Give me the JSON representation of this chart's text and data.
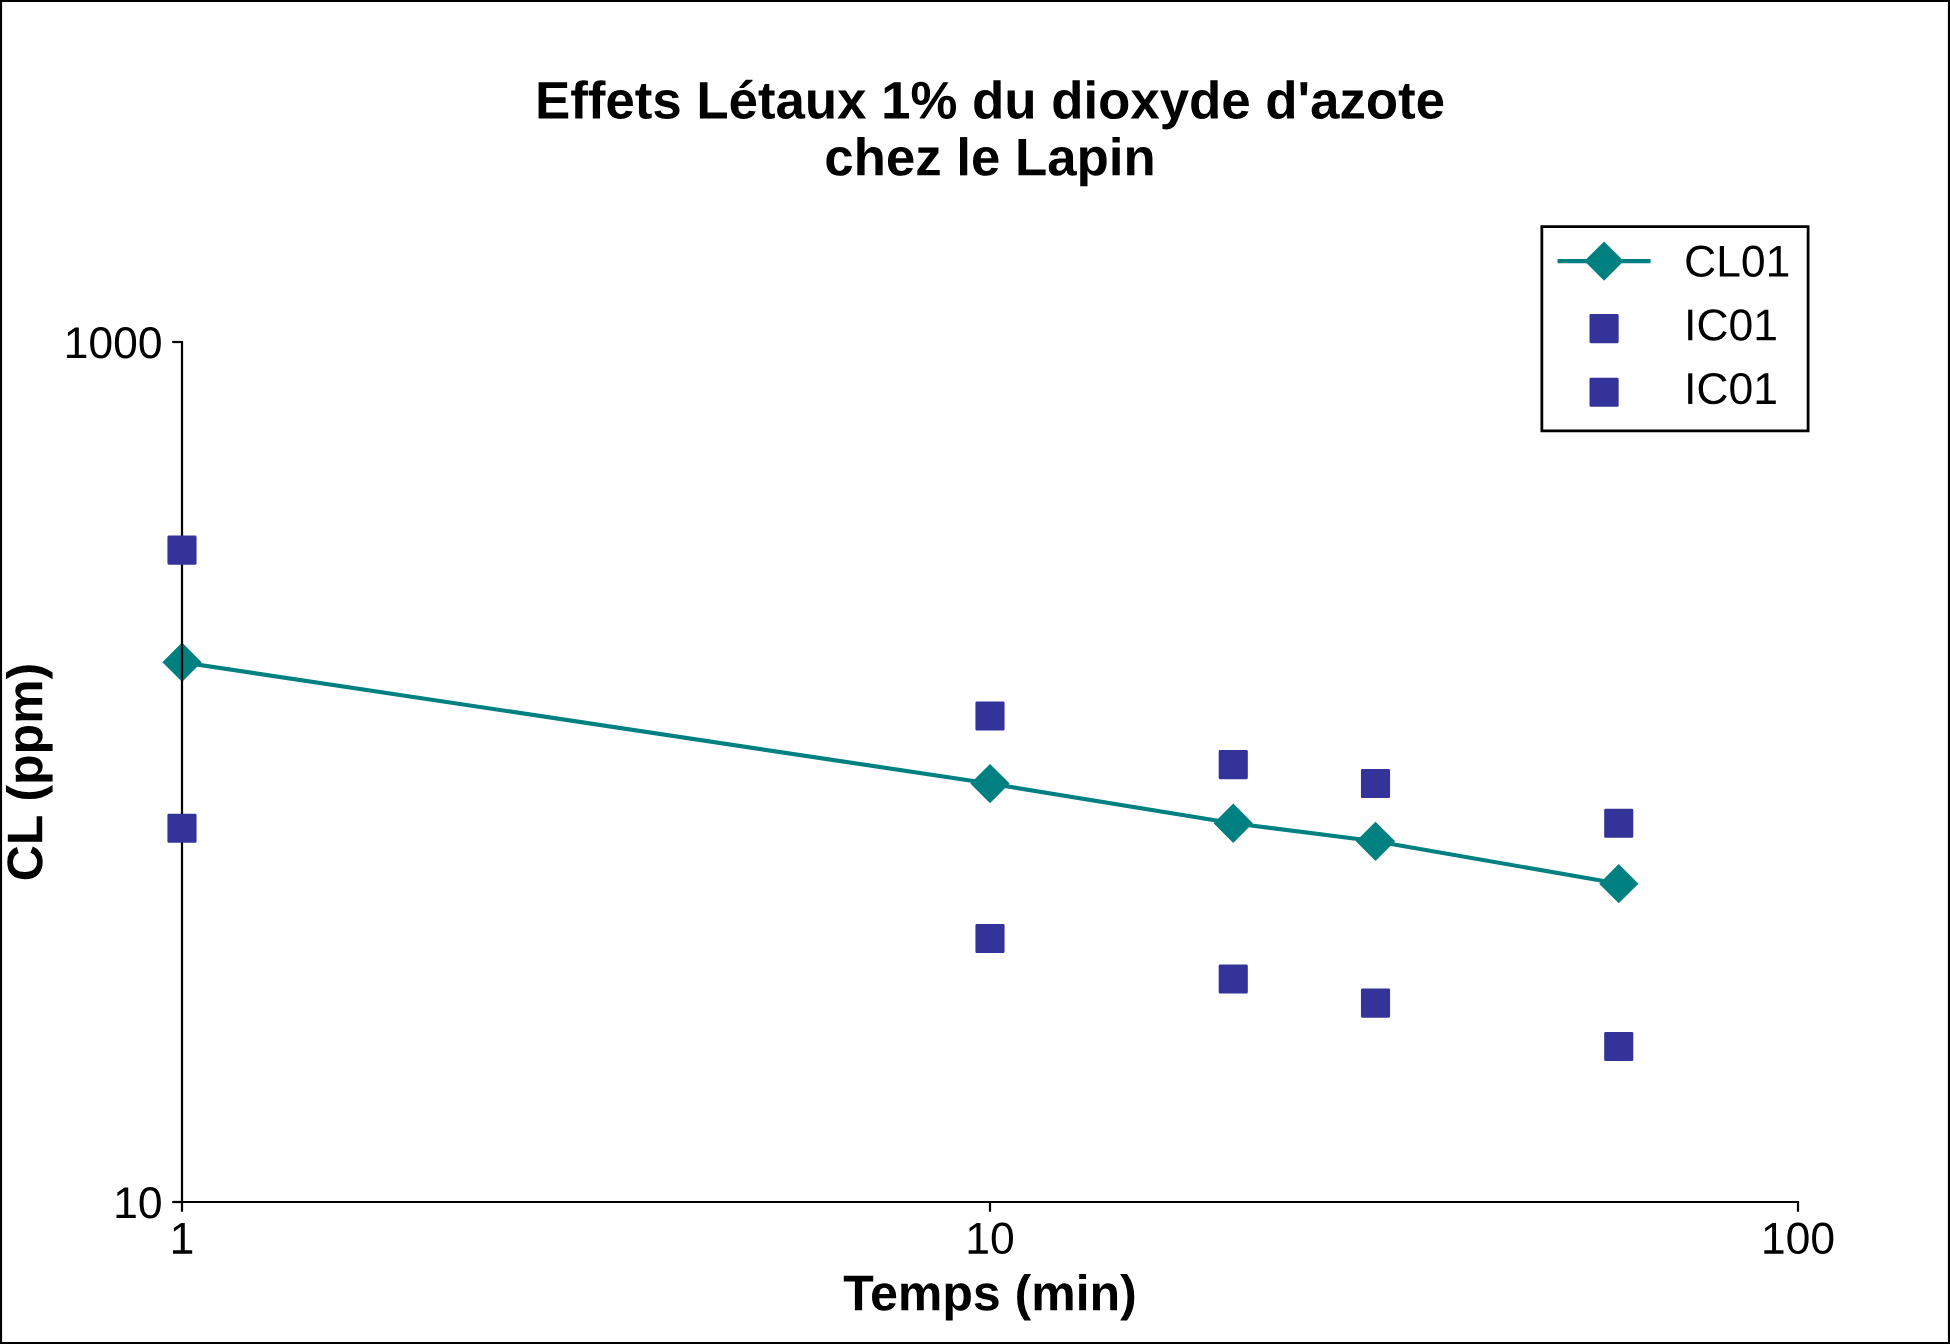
{
  "chart_data": {
    "type": "line",
    "title": "Effets Létaux 1% du dioxyde d'azote\nchez le Lapin",
    "xlabel": "Temps (min)",
    "ylabel": "CL (ppm)",
    "log": "xy",
    "xlim": [
      1,
      100
    ],
    "xticks": [
      1,
      10,
      100
    ],
    "ylim": [
      10,
      1000
    ],
    "yticks": [
      10,
      1000
    ],
    "grid": false,
    "legend": "top right",
    "series": [
      {
        "name": "CL01",
        "color": "#008080",
        "marker": "diamond",
        "line_style": "solid",
        "x": [
          1,
          10,
          20,
          30,
          60
        ],
        "values": [
          180,
          94,
          76,
          69,
          55
        ]
      },
      {
        "name": "IC01",
        "type": "scatter",
        "color": "#333399",
        "marker": "square",
        "x": [
          1,
          10,
          20,
          30,
          60
        ],
        "values": [
          328,
          135,
          104,
          94,
          76
        ]
      },
      {
        "name": "IC01",
        "type": "scatter",
        "color": "#333399",
        "marker": "square",
        "x": [
          1,
          10,
          20,
          30,
          60
        ],
        "values": [
          74,
          41,
          33,
          29,
          23
        ]
      }
    ]
  }
}
